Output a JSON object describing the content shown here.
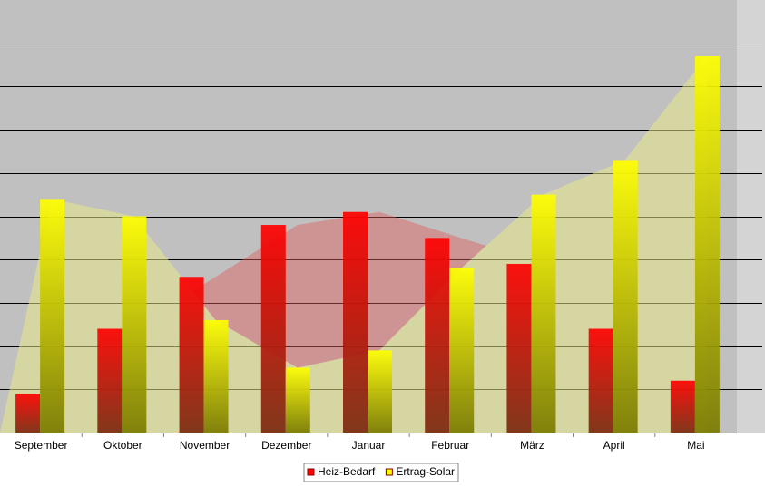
{
  "chart_data": {
    "type": "bar",
    "categories": [
      "September",
      "Oktober",
      "November",
      "Dezember",
      "Januar",
      "Februar",
      "März",
      "April",
      "Mai"
    ],
    "series": [
      {
        "name": "Heiz-Bedarf",
        "color": "#ff0000",
        "values": [
          0.9,
          2.4,
          3.6,
          4.8,
          5.1,
          4.5,
          3.9,
          2.4,
          1.2
        ]
      },
      {
        "name": "Ertrag-Solar",
        "color": "#ffff00",
        "values": [
          5.4,
          5.0,
          2.6,
          1.5,
          1.9,
          3.8,
          5.5,
          6.3,
          8.7
        ]
      }
    ],
    "ylim": [
      0,
      10
    ],
    "yticks": [
      1,
      2,
      3,
      4,
      5,
      6,
      7,
      8,
      9
    ],
    "grid": true
  }
}
